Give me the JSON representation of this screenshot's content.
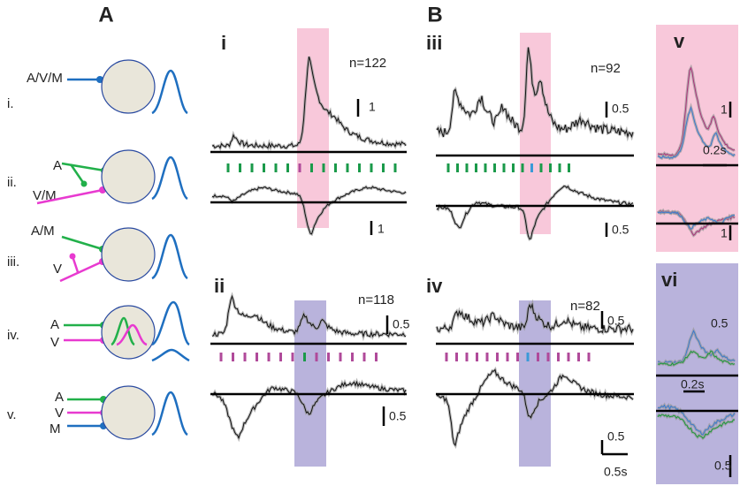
{
  "panel_a": {
    "label": "A",
    "rows": [
      {
        "numeral": "i.",
        "inputs": [
          "A/V/M"
        ]
      },
      {
        "numeral": "ii.",
        "inputs": [
          "A",
          "V/M"
        ]
      },
      {
        "numeral": "iii.",
        "inputs": [
          "A/M",
          "V"
        ]
      },
      {
        "numeral": "iv.",
        "inputs": [
          "A",
          "V"
        ]
      },
      {
        "numeral": "v.",
        "inputs": [
          "A",
          "V",
          "M"
        ]
      }
    ]
  },
  "panel_b": {
    "label": "B",
    "subpanels": [
      {
        "label": "i",
        "n": "n=122",
        "scales": [
          "1",
          "1"
        ]
      },
      {
        "label": "ii",
        "n": "n=118",
        "scales": [
          "0.5",
          "0.5"
        ]
      },
      {
        "label": "iii",
        "n": "n=92",
        "scales": [
          "0.5",
          "0.5"
        ]
      },
      {
        "label": "iv",
        "n": "n=82",
        "scales": [
          "0.5",
          "0.5",
          "0.5s"
        ]
      },
      {
        "label": "v",
        "scales": [
          "1",
          "0.2s",
          "1"
        ]
      },
      {
        "label": "vi",
        "scales": [
          "0.5",
          "0.2s",
          "0.5"
        ]
      }
    ]
  }
}
